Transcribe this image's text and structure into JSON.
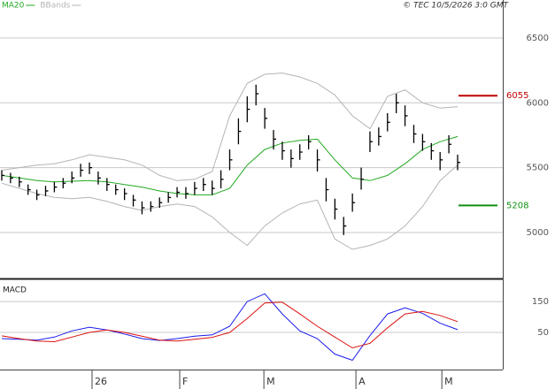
{
  "chart_data": [
    {
      "type": "hlc",
      "copyright": "© TEC 10/5/2026 3:0 GMT",
      "color": "#000000",
      "x": [
        0,
        2,
        4,
        6,
        8,
        10,
        12,
        14,
        16,
        18,
        20,
        22,
        24,
        26,
        28,
        30,
        32,
        34,
        36,
        38,
        40,
        42,
        44,
        46,
        48,
        50,
        52,
        54,
        56,
        58,
        60,
        62,
        64,
        66,
        68,
        70,
        72,
        74,
        76,
        78,
        80,
        82,
        84,
        86,
        88,
        90,
        92,
        94,
        96,
        98,
        100,
        102,
        104
      ],
      "high": [
        5480,
        5460,
        5430,
        5370,
        5330,
        5360,
        5390,
        5420,
        5470,
        5530,
        5540,
        5470,
        5420,
        5370,
        5340,
        5290,
        5240,
        5240,
        5270,
        5310,
        5350,
        5350,
        5390,
        5420,
        5400,
        5480,
        5640,
        5880,
        6050,
        6140,
        5960,
        5790,
        5700,
        5640,
        5680,
        5750,
        5640,
        5420,
        5260,
        5120,
        5300,
        5500,
        5780,
        5810,
        5920,
        6070,
        5980,
        5830,
        5760,
        5690,
        5620,
        5750,
        5600
      ],
      "low": [
        5400,
        5380,
        5350,
        5290,
        5250,
        5280,
        5310,
        5340,
        5380,
        5430,
        5450,
        5370,
        5320,
        5290,
        5250,
        5200,
        5140,
        5160,
        5190,
        5230,
        5270,
        5260,
        5290,
        5320,
        5290,
        5340,
        5480,
        5680,
        5850,
        5980,
        5800,
        5640,
        5560,
        5500,
        5560,
        5640,
        5470,
        5240,
        5100,
        4980,
        5160,
        5330,
        5620,
        5670,
        5780,
        5920,
        5820,
        5690,
        5630,
        5560,
        5480,
        5610,
        5480
      ],
      "close": [
        5440,
        5420,
        5390,
        5330,
        5290,
        5320,
        5350,
        5380,
        5420,
        5480,
        5500,
        5420,
        5370,
        5330,
        5300,
        5250,
        5190,
        5200,
        5230,
        5270,
        5310,
        5300,
        5340,
        5370,
        5340,
        5410,
        5560,
        5780,
        5950,
        6070,
        5880,
        5720,
        5630,
        5570,
        5620,
        5700,
        5560,
        5330,
        5180,
        5050,
        5230,
        5410,
        5700,
        5740,
        5850,
        6000,
        5900,
        5760,
        5700,
        5630,
        5560,
        5680,
        5540
      ],
      "lines": [
        {
          "name": "MA20",
          "color": "#22aa22",
          "x": [
            0,
            4,
            8,
            12,
            16,
            20,
            24,
            28,
            32,
            36,
            40,
            44,
            48,
            52,
            56,
            60,
            64,
            68,
            72,
            76,
            80,
            84,
            88,
            92,
            96,
            100,
            104
          ],
          "values": [
            5440,
            5420,
            5400,
            5390,
            5395,
            5400,
            5390,
            5370,
            5350,
            5320,
            5300,
            5290,
            5290,
            5340,
            5520,
            5640,
            5690,
            5710,
            5720,
            5560,
            5420,
            5400,
            5440,
            5530,
            5640,
            5700,
            5740
          ]
        },
        {
          "name": "BBands",
          "color": "#b4b4b4",
          "x": [
            0,
            4,
            8,
            12,
            16,
            20,
            24,
            28,
            32,
            36,
            40,
            44,
            48,
            52,
            56,
            60,
            64,
            68,
            72,
            76,
            80,
            84,
            88,
            92,
            96,
            100,
            104
          ],
          "upper": [
            5480,
            5500,
            5520,
            5530,
            5560,
            5600,
            5580,
            5560,
            5520,
            5440,
            5400,
            5410,
            5470,
            5900,
            6150,
            6220,
            6230,
            6200,
            6150,
            6060,
            5900,
            5800,
            6050,
            6100,
            6000,
            5960,
            5970
          ],
          "lower": [
            5380,
            5340,
            5300,
            5270,
            5260,
            5270,
            5240,
            5200,
            5170,
            5200,
            5220,
            5200,
            5120,
            5000,
            4900,
            5050,
            5150,
            5220,
            5250,
            4950,
            4870,
            4900,
            4950,
            5050,
            5200,
            5400,
            5520
          ]
        }
      ],
      "annotations": [
        {
          "value": 6055,
          "color": "#c00000"
        },
        {
          "value": 5208,
          "color": "#109010"
        }
      ],
      "xlim": [
        -0.4,
        114.3
      ],
      "ylim": [
        4645,
        6793
      ],
      "yticks": [
        6500,
        6000,
        5500,
        5000
      ],
      "grid": true
    },
    {
      "type": "line",
      "title": "MACD",
      "x": [
        0,
        4,
        8,
        12,
        16,
        20,
        24,
        28,
        32,
        36,
        40,
        44,
        48,
        52,
        56,
        60,
        64,
        68,
        72,
        76,
        80,
        84,
        88,
        92,
        96,
        100,
        104
      ],
      "series": [
        {
          "color": "#1a1aee",
          "values": [
            30,
            28,
            25,
            35,
            55,
            67,
            58,
            45,
            30,
            24,
            30,
            38,
            42,
            70,
            150,
            175,
            110,
            55,
            30,
            -20,
            -40,
            40,
            110,
            130,
            112,
            80,
            59
          ]
        },
        {
          "color": "#dd1111",
          "values": [
            39,
            30,
            22,
            20,
            35,
            50,
            58,
            50,
            38,
            25,
            22,
            28,
            34,
            50,
            95,
            145,
            148,
            110,
            70,
            35,
            0,
            15,
            65,
            110,
            118,
            105,
            85
          ]
        }
      ],
      "xlim": [
        -0.4,
        114.3
      ],
      "ylim": [
        -70,
        216
      ],
      "yticks": [
        150,
        50
      ],
      "xticks": [
        {
          "value": 20.6,
          "label": "26"
        },
        {
          "value": 40.6,
          "label": "F"
        },
        {
          "value": 59.8,
          "label": "M"
        },
        {
          "value": 80.8,
          "label": "A"
        },
        {
          "value": 100.4,
          "label": "M"
        }
      ],
      "grid": true
    }
  ]
}
